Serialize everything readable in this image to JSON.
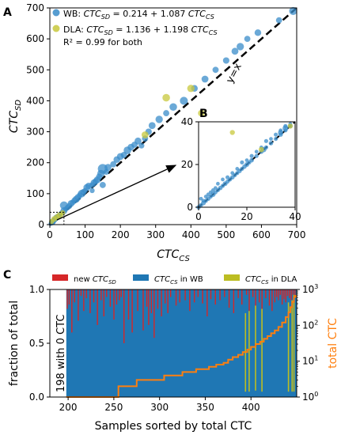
{
  "panel_labels": {
    "a": "A",
    "b": "B",
    "c": "C"
  },
  "colors": {
    "wb": "#3a8cc9",
    "dla": "#c8c83c",
    "new_sd": "#d62728",
    "cs_wb": "#1f77b4",
    "cs_dla": "#bcbd22",
    "total": "#ff7f0e"
  },
  "chart_data": [
    {
      "type": "scatter",
      "id": "A",
      "xlabel_main": "CTC",
      "xlabel_sub": "CS",
      "ylabel_main": "CTC",
      "ylabel_sub": "SD",
      "xlim": [
        0,
        700
      ],
      "ylim": [
        0,
        700
      ],
      "xticks": [
        0,
        100,
        200,
        300,
        400,
        500,
        600,
        700
      ],
      "yticks": [
        0,
        100,
        200,
        300,
        400,
        500,
        600,
        700
      ],
      "diagonal_label": "y=x",
      "legend": [
        {
          "series": "WB",
          "text_parts": [
            "WB: ",
            "CTC",
            "SD",
            " = 0.214 + 1.087 ",
            "CTC",
            "CS"
          ]
        },
        {
          "series": "DLA",
          "text_parts": [
            "DLA: ",
            "CTC",
            "SD",
            " = 1.136 + 1.198 ",
            "CTC",
            "CS"
          ]
        }
      ],
      "r2_text": "R² = 0.99 for both",
      "series": [
        {
          "name": "WB",
          "points": [
            [
              2,
              2,
              10
            ],
            [
              4,
              5,
              14
            ],
            [
              6,
              7,
              22
            ],
            [
              8,
              9,
              24
            ],
            [
              10,
              12,
              18
            ],
            [
              12,
              14,
              20
            ],
            [
              15,
              17,
              16
            ],
            [
              18,
              22,
              24
            ],
            [
              22,
              26,
              18
            ],
            [
              25,
              28,
              20
            ],
            [
              30,
              35,
              14
            ],
            [
              35,
              38,
              22
            ],
            [
              40,
              45,
              30
            ],
            [
              45,
              50,
              16
            ],
            [
              50,
              55,
              20
            ],
            [
              40,
              62,
              40
            ],
            [
              55,
              60,
              22
            ],
            [
              60,
              68,
              28
            ],
            [
              65,
              72,
              20
            ],
            [
              70,
              78,
              24
            ],
            [
              75,
              82,
              30
            ],
            [
              80,
              88,
              28
            ],
            [
              85,
              95,
              20
            ],
            [
              90,
              100,
              36
            ],
            [
              95,
              105,
              24
            ],
            [
              100,
              110,
              18
            ],
            [
              105,
              120,
              30
            ],
            [
              110,
              125,
              26
            ],
            [
              120,
              128,
              20
            ],
            [
              125,
              135,
              28
            ],
            [
              130,
              140,
              24
            ],
            [
              135,
              145,
              30
            ],
            [
              120,
              110,
              16
            ],
            [
              145,
              165,
              34
            ],
            [
              140,
              155,
              24
            ],
            [
              150,
              180,
              60
            ],
            [
              160,
              170,
              20
            ],
            [
              150,
              128,
              24
            ],
            [
              165,
              185,
              30
            ],
            [
              180,
              195,
              24
            ],
            [
              190,
              210,
              28
            ],
            [
              200,
              220,
              30
            ],
            [
              210,
              225,
              24
            ],
            [
              220,
              240,
              36
            ],
            [
              230,
              250,
              28
            ],
            [
              240,
              258,
              24
            ],
            [
              250,
              270,
              30
            ],
            [
              270,
              278,
              24
            ],
            [
              260,
              255,
              20
            ],
            [
              280,
              300,
              26
            ],
            [
              290,
              320,
              30
            ],
            [
              310,
              340,
              34
            ],
            [
              330,
              360,
              24
            ],
            [
              350,
              380,
              36
            ],
            [
              380,
              400,
              40
            ],
            [
              410,
              440,
              28
            ],
            [
              440,
              470,
              30
            ],
            [
              470,
              500,
              24
            ],
            [
              500,
              530,
              26
            ],
            [
              525,
              560,
              30
            ],
            [
              540,
              575,
              34
            ],
            [
              560,
              600,
              24
            ],
            [
              590,
              620,
              28
            ],
            [
              650,
              660,
              24
            ],
            [
              690,
              690,
              40
            ]
          ]
        },
        {
          "name": "DLA",
          "points": [
            [
              5,
              10,
              16
            ],
            [
              12,
              18,
              20
            ],
            [
              20,
              24,
              22
            ],
            [
              28,
              30,
              26
            ],
            [
              36,
              38,
              18
            ],
            [
              270,
              290,
              30
            ],
            [
              330,
              410,
              36
            ],
            [
              400,
              440,
              34
            ],
            [
              430,
              360,
              30
            ]
          ]
        }
      ]
    },
    {
      "type": "scatter",
      "id": "B",
      "xlim": [
        0,
        40
      ],
      "ylim": [
        0,
        40
      ],
      "xticks": [
        0,
        20,
        40
      ],
      "yticks": [
        0,
        20,
        40
      ],
      "series": [
        {
          "name": "WB",
          "points": [
            [
              0,
              0,
              14
            ],
            [
              1,
              1,
              12
            ],
            [
              2,
              2,
              16
            ],
            [
              3,
              3,
              12
            ],
            [
              4,
              4,
              14
            ],
            [
              5,
              5,
              12
            ],
            [
              6,
              6,
              18
            ],
            [
              7,
              7,
              12
            ],
            [
              8,
              8,
              12
            ],
            [
              9,
              9,
              14
            ],
            [
              10,
              10,
              12
            ],
            [
              11,
              11,
              16
            ],
            [
              12,
              12,
              12
            ],
            [
              13,
              13,
              12
            ],
            [
              14,
              14,
              14
            ],
            [
              15,
              15,
              12
            ],
            [
              16,
              16,
              12
            ],
            [
              17,
              17,
              14
            ],
            [
              18,
              18,
              12
            ],
            [
              19,
              19,
              14
            ],
            [
              20,
              20,
              16
            ],
            [
              21,
              21,
              12
            ],
            [
              22,
              22,
              14
            ],
            [
              24,
              24,
              12
            ],
            [
              26,
              26,
              14
            ],
            [
              28,
              28,
              12
            ],
            [
              30,
              30,
              14
            ],
            [
              32,
              32,
              12
            ],
            [
              34,
              34,
              14
            ],
            [
              36,
              36,
              12
            ],
            [
              38,
              38,
              16
            ],
            [
              2,
              3,
              10
            ],
            [
              4,
              6,
              10
            ],
            [
              6,
              8,
              10
            ],
            [
              8,
              11,
              10
            ],
            [
              10,
              13,
              10
            ],
            [
              12,
              14,
              12
            ],
            [
              14,
              16,
              10
            ],
            [
              16,
              18,
              10
            ],
            [
              18,
              21,
              12
            ],
            [
              20,
              22,
              10
            ],
            [
              22,
              24,
              12
            ],
            [
              24,
              26,
              10
            ],
            [
              26,
              28,
              10
            ],
            [
              28,
              31,
              12
            ],
            [
              30,
              32,
              10
            ],
            [
              32,
              34,
              12
            ],
            [
              34,
              36,
              10
            ],
            [
              36,
              38,
              12
            ],
            [
              38,
              39,
              10
            ],
            [
              27,
              27,
              20
            ],
            [
              34,
              35,
              20
            ],
            [
              36,
              37,
              24
            ],
            [
              1,
              4,
              10
            ],
            [
              3,
              5,
              10
            ],
            [
              5,
              7,
              10
            ],
            [
              7,
              9,
              10
            ]
          ]
        },
        {
          "name": "DLA",
          "points": [
            [
              14,
              35,
              18
            ],
            [
              26,
              27,
              20
            ],
            [
              38,
              38,
              18
            ]
          ]
        }
      ]
    },
    {
      "type": "bar",
      "id": "C",
      "xlabel": "Samples sorted by total CTC",
      "ylabel": "fraction of total",
      "y2label": "total CTC",
      "xlim": [
        180,
        450
      ],
      "xticks": [
        200,
        250,
        300,
        350,
        400
      ],
      "yticks": [
        0.0,
        0.5,
        1.0
      ],
      "y2_scale": "log",
      "y2lim": [
        1,
        1000
      ],
      "y2ticks_base": "10",
      "y2ticks_exp": [
        "0",
        "1",
        "2",
        "3"
      ],
      "annotation": "198 with 0 CTC",
      "legend": [
        {
          "series": "new_sd",
          "text_parts": [
            "new ",
            "CTC",
            "SD",
            ""
          ]
        },
        {
          "series": "cs_wb",
          "text_parts": [
            "",
            "CTC",
            "CS",
            " in WB"
          ]
        },
        {
          "series": "cs_dla",
          "text_parts": [
            "",
            "CTC",
            "CS",
            " in DLA"
          ]
        }
      ],
      "red_bars": [
        [
          199,
          0.82
        ],
        [
          201,
          0.86
        ],
        [
          204,
          0.6
        ],
        [
          207,
          0.88
        ],
        [
          211,
          0.71
        ],
        [
          214,
          0.94
        ],
        [
          217,
          0.8
        ],
        [
          220,
          0.92
        ],
        [
          224,
          0.78
        ],
        [
          228,
          0.88
        ],
        [
          232,
          0.67
        ],
        [
          236,
          0.9
        ],
        [
          239,
          0.75
        ],
        [
          242,
          0.93
        ],
        [
          246,
          0.84
        ],
        [
          250,
          0.72
        ],
        [
          253,
          0.86
        ],
        [
          256,
          0.9
        ],
        [
          258,
          0.93
        ],
        [
          261,
          0.5
        ],
        [
          266,
          0.72
        ],
        [
          270,
          0.6
        ],
        [
          276,
          0.8
        ],
        [
          282,
          0.62
        ],
        [
          286,
          0.84
        ],
        [
          288,
          0.67
        ],
        [
          291,
          0.78
        ],
        [
          294,
          0.55
        ],
        [
          298,
          0.82
        ],
        [
          302,
          0.75
        ],
        [
          306,
          0.87
        ],
        [
          309,
          0.78
        ],
        [
          312,
          0.93
        ],
        [
          318,
          0.85
        ],
        [
          322,
          0.88
        ],
        [
          328,
          0.9
        ],
        [
          333,
          0.8
        ],
        [
          338,
          0.88
        ],
        [
          342,
          0.93
        ],
        [
          347,
          0.87
        ],
        [
          352,
          0.75
        ],
        [
          356,
          0.91
        ],
        [
          361,
          0.86
        ],
        [
          366,
          0.9
        ],
        [
          371,
          0.93
        ],
        [
          376,
          0.83
        ],
        [
          381,
          0.78
        ],
        [
          386,
          0.92
        ],
        [
          390,
          0.86
        ],
        [
          395,
          0.95
        ],
        [
          398,
          0.8
        ],
        [
          402,
          0.93
        ],
        [
          405,
          0.82
        ],
        [
          409,
          0.88
        ],
        [
          412,
          0.75
        ],
        [
          416,
          0.92
        ],
        [
          420,
          0.85
        ],
        [
          423,
          0.8
        ],
        [
          426,
          0.88
        ],
        [
          428,
          0.93
        ],
        [
          430,
          0.9
        ],
        [
          432,
          0.95
        ],
        [
          434,
          0.86
        ],
        [
          436,
          0.91
        ],
        [
          438,
          0.88
        ],
        [
          440,
          0.94
        ],
        [
          442,
          0.92
        ],
        [
          444,
          0.9
        ],
        [
          446,
          0.95
        ],
        [
          448,
          0.93
        ]
      ],
      "dla_bars": [
        [
          394,
          0.05,
          0.78
        ],
        [
          398,
          0.05,
          0.8
        ],
        [
          405,
          0.06,
          0.85
        ],
        [
          412,
          0.05,
          0.82
        ],
        [
          441,
          0.05,
          0.88
        ],
        [
          445,
          0.05,
          0.9
        ],
        [
          447,
          0.05,
          0.95
        ]
      ],
      "total_steps": [
        [
          198,
          1
        ],
        [
          252,
          1
        ],
        [
          255,
          2
        ],
        [
          272,
          2
        ],
        [
          275,
          3
        ],
        [
          300,
          3
        ],
        [
          305,
          4
        ],
        [
          320,
          4
        ],
        [
          325,
          5
        ],
        [
          336,
          5
        ],
        [
          340,
          6
        ],
        [
          350,
          6
        ],
        [
          354,
          7
        ],
        [
          362,
          8
        ],
        [
          370,
          9
        ],
        [
          375,
          11
        ],
        [
          380,
          13
        ],
        [
          386,
          15
        ],
        [
          391,
          18
        ],
        [
          396,
          21
        ],
        [
          400,
          25
        ],
        [
          405,
          30
        ],
        [
          410,
          35
        ],
        [
          414,
          42
        ],
        [
          418,
          50
        ],
        [
          422,
          60
        ],
        [
          426,
          72
        ],
        [
          430,
          90
        ],
        [
          434,
          120
        ],
        [
          438,
          170
        ],
        [
          441,
          230
        ],
        [
          443,
          320
        ],
        [
          445,
          450
        ],
        [
          447,
          620
        ],
        [
          449,
          700
        ]
      ]
    }
  ]
}
